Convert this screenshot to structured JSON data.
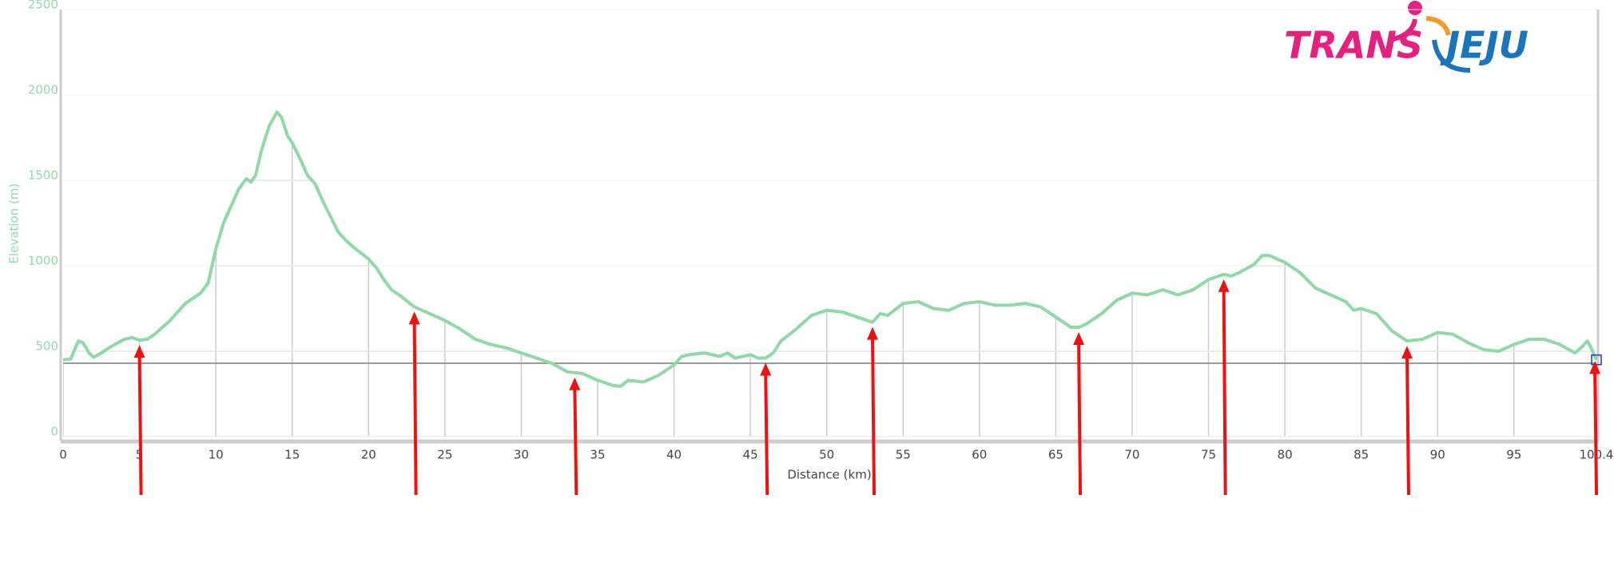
{
  "chart_data": {
    "type": "line",
    "xlabel": "Distance (km)",
    "ylabel": "Elevation (m)",
    "logo": [
      "TRANS",
      "JEJU"
    ],
    "xlim": [
      0,
      100.4
    ],
    "xticks": [
      0,
      5,
      10,
      15,
      20,
      25,
      30,
      35,
      40,
      45,
      50,
      55,
      60,
      65,
      70,
      75,
      80,
      85,
      90,
      95,
      100.4
    ],
    "ylim": [
      0,
      2500
    ],
    "yticks": [
      0,
      500,
      1000,
      1500,
      2000,
      2500
    ],
    "grid": true,
    "reference_line": 430,
    "markers": [
      5,
      23,
      33.5,
      46,
      53,
      66.5,
      76,
      88,
      100.3
    ],
    "marker_color": "#ee1111",
    "x": [
      0,
      0.5,
      0.8,
      1,
      1.3,
      1.7,
      2,
      2.5,
      3,
      3.5,
      4,
      4.5,
      5,
      5.5,
      6,
      7,
      8,
      9,
      9.5,
      10,
      10.5,
      11,
      11.5,
      12,
      12.3,
      12.6,
      13,
      13.5,
      14,
      14.3,
      14.7,
      15,
      15.5,
      16,
      16.5,
      17,
      17.5,
      18,
      18.5,
      19,
      20,
      20.5,
      21,
      21.5,
      22,
      23,
      24,
      25,
      26,
      27,
      28,
      29,
      30,
      31,
      32,
      33,
      34,
      35,
      36,
      36.5,
      37,
      38,
      39,
      40,
      40.5,
      41,
      42,
      43,
      43.5,
      44,
      45,
      45.5,
      46,
      46.5,
      47,
      48,
      49,
      50,
      51,
      52,
      53,
      53.5,
      54,
      55,
      56,
      57,
      58,
      59,
      60,
      61,
      62,
      63,
      64,
      65,
      66,
      66.5,
      67,
      68,
      69,
      70,
      71,
      72,
      73,
      74,
      75,
      76,
      76.5,
      77,
      78,
      78.5,
      79,
      80,
      81,
      82,
      83,
      84,
      84.5,
      85,
      86,
      87,
      88,
      89,
      90,
      91,
      92,
      93,
      94,
      95,
      96,
      97,
      98,
      99,
      99.5,
      99.8,
      100,
      100.4
    ],
    "series": [
      {
        "color": "#8ed9a6",
        "values": [
          450,
          455,
          520,
          560,
          550,
          490,
          465,
          490,
          520,
          545,
          570,
          580,
          565,
          570,
          600,
          680,
          780,
          840,
          900,
          1100,
          1250,
          1350,
          1450,
          1510,
          1490,
          1530,
          1680,
          1820,
          1900,
          1870,
          1760,
          1720,
          1630,
          1530,
          1480,
          1380,
          1290,
          1200,
          1150,
          1110,
          1040,
          990,
          920,
          860,
          830,
          760,
          720,
          680,
          630,
          570,
          540,
          520,
          490,
          460,
          430,
          380,
          370,
          330,
          300,
          295,
          330,
          320,
          360,
          420,
          470,
          480,
          490,
          470,
          490,
          460,
          480,
          460,
          460,
          490,
          560,
          630,
          710,
          740,
          730,
          700,
          670,
          720,
          710,
          780,
          790,
          750,
          740,
          780,
          790,
          770,
          770,
          780,
          760,
          700,
          640,
          640,
          660,
          720,
          800,
          840,
          830,
          860,
          830,
          860,
          920,
          950,
          940,
          960,
          1010,
          1060,
          1060,
          1020,
          960,
          870,
          830,
          790,
          740,
          750,
          720,
          620,
          560,
          570,
          610,
          600,
          550,
          510,
          500,
          540,
          570,
          570,
          540,
          490,
          530,
          560,
          530,
          450
        ]
      }
    ]
  }
}
